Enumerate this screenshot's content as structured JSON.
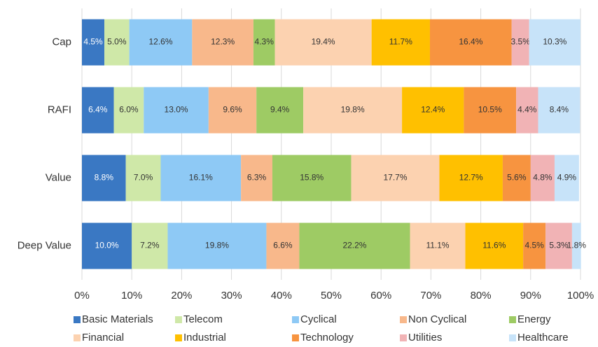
{
  "chart_data": {
    "type": "stacked_barh",
    "categories": [
      "Cap",
      "RAFI",
      "Value",
      "Deep Value"
    ],
    "series": [
      {
        "name": "Basic Materials",
        "color": "#3a78c3",
        "values": [
          4.5,
          6.4,
          8.8,
          10.0
        ],
        "value_labels": [
          "4.5%",
          "6.4%",
          "8.8%",
          "10.0%"
        ]
      },
      {
        "name": "Telecom",
        "color": "#cfe8a8",
        "values": [
          5.0,
          6.0,
          7.0,
          7.2
        ],
        "value_labels": [
          "5.0%",
          "6.0%",
          "7.0%",
          "7.2%"
        ]
      },
      {
        "name": "Cyclical",
        "color": "#8ec9f5",
        "values": [
          12.6,
          13.0,
          16.1,
          19.8
        ],
        "value_labels": [
          "12.6%",
          "13.0%",
          "16.1%",
          "19.8%"
        ]
      },
      {
        "name": "Non Cyclical",
        "color": "#f8b88b",
        "values": [
          12.3,
          9.6,
          6.3,
          6.6
        ],
        "value_labels": [
          "12.3%",
          "9.6%",
          "6.3%",
          "6.6%"
        ]
      },
      {
        "name": "Energy",
        "color": "#9ecb64",
        "values": [
          4.3,
          9.4,
          15.8,
          22.2
        ],
        "value_labels": [
          "4.3%",
          "9.4%",
          "15.8%",
          "22.2%"
        ]
      },
      {
        "name": "Financial",
        "color": "#fcd2b0",
        "values": [
          19.4,
          19.8,
          17.7,
          11.1
        ],
        "value_labels": [
          "19.4%",
          "19.8%",
          "17.7%",
          "11.1%"
        ]
      },
      {
        "name": "Industrial",
        "color": "#ffc000",
        "values": [
          11.7,
          12.4,
          12.7,
          11.6
        ],
        "value_labels": [
          "11.7%",
          "12.4%",
          "12.7%",
          "11.6%"
        ]
      },
      {
        "name": "Technology",
        "color": "#f79440",
        "values": [
          16.4,
          10.5,
          5.6,
          4.5
        ],
        "value_labels": [
          "16.4%",
          "10.5%",
          "5.6%",
          "4.5%"
        ]
      },
      {
        "name": "Utilities",
        "color": "#f1b3b5",
        "values": [
          3.5,
          4.4,
          4.8,
          5.3
        ],
        "value_labels": [
          "3.5%",
          "4.4%",
          "4.8%",
          "5.3%"
        ]
      },
      {
        "name": "Healthcare",
        "color": "#c7e3f9",
        "values": [
          10.3,
          8.4,
          4.9,
          1.8
        ],
        "value_labels": [
          "10.3%",
          "8.4%",
          "4.9%",
          "1.8%"
        ]
      }
    ],
    "xlim": [
      0,
      100
    ],
    "xticks": [
      {
        "value": 0,
        "label": "0%"
      },
      {
        "value": 10,
        "label": "10%"
      },
      {
        "value": 20,
        "label": "20%"
      },
      {
        "value": 30,
        "label": "30%"
      },
      {
        "value": 40,
        "label": "40%"
      },
      {
        "value": 50,
        "label": "50%"
      },
      {
        "value": 60,
        "label": "60%"
      },
      {
        "value": 70,
        "label": "70%"
      },
      {
        "value": 80,
        "label": "80%"
      },
      {
        "value": 90,
        "label": "90%"
      },
      {
        "value": 100,
        "label": "100%"
      }
    ],
    "grid": true
  }
}
